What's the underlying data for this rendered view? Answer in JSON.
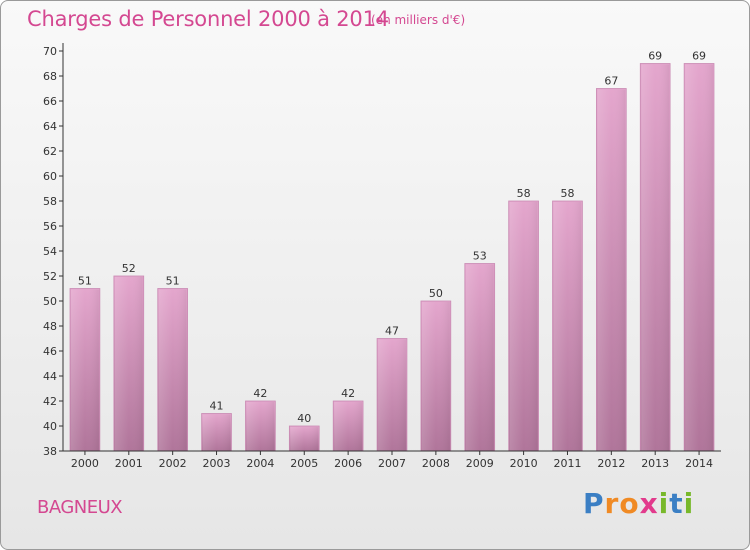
{
  "header": {
    "title": "Charges de Personnel 2000 à 2014",
    "subtitle": "(en milliers d'€)"
  },
  "footer": {
    "commune": "BAGNEUX",
    "brand_letters": [
      "P",
      "r",
      "o",
      "x",
      "i",
      "t",
      "i"
    ]
  },
  "colors": {
    "bar_top": "#e4a6cd",
    "bar_bottom": "#b0759a",
    "title": "#d44891",
    "brand": [
      "#3b7fc4",
      "#f08a24",
      "#f08a24",
      "#e23a8c",
      "#78b82a",
      "#3b7fc4",
      "#78b82a"
    ]
  },
  "chart_data": {
    "type": "bar",
    "categories": [
      "2000",
      "2001",
      "2002",
      "2003",
      "2004",
      "2005",
      "2006",
      "2007",
      "2008",
      "2009",
      "2010",
      "2011",
      "2012",
      "2013",
      "2014"
    ],
    "values": [
      51,
      52,
      51,
      41,
      42,
      40,
      42,
      47,
      50,
      53,
      58,
      58,
      67,
      69,
      69
    ],
    "ylim": [
      38,
      70
    ],
    "yticks": [
      38,
      40,
      42,
      44,
      46,
      48,
      50,
      52,
      54,
      56,
      58,
      60,
      62,
      64,
      66,
      68,
      70
    ],
    "grid": false,
    "data_labels": true
  }
}
